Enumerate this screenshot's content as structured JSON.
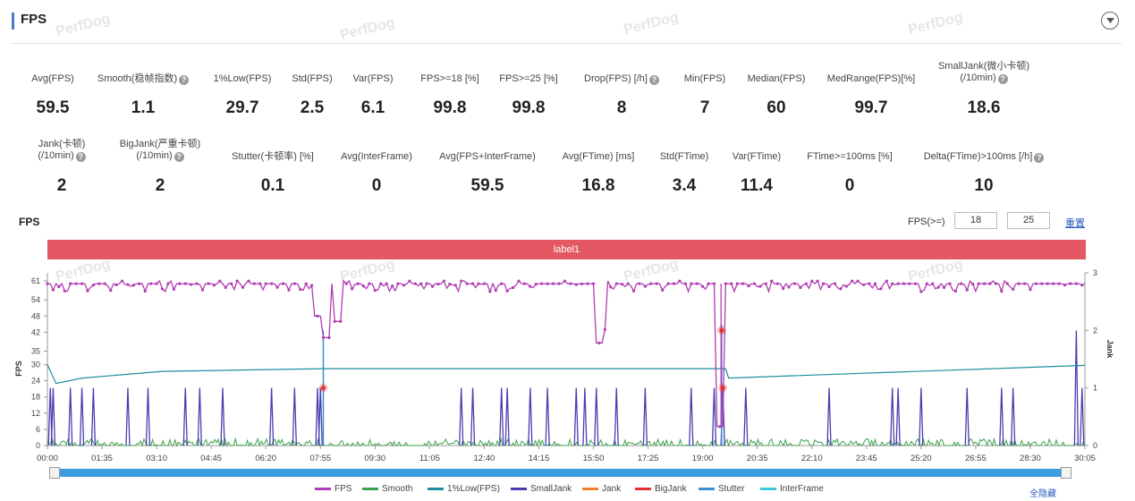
{
  "header": {
    "title": "FPS"
  },
  "watermark_text": "PerfDog",
  "metrics_row1": [
    {
      "label": "Avg(FPS)",
      "value": "59.5"
    },
    {
      "label": "Smooth(稳帧指数)",
      "value": "1.1",
      "help": true
    },
    {
      "label": "1%Low(FPS)",
      "value": "29.7"
    },
    {
      "label": "Std(FPS)",
      "value": "2.5"
    },
    {
      "label": "Var(FPS)",
      "value": "6.1"
    },
    {
      "label": "FPS>=18 [%]",
      "value": "99.8"
    },
    {
      "label": "FPS>=25 [%]",
      "value": "99.8"
    },
    {
      "label": "Drop(FPS) [/h]",
      "value": "8",
      "help": true
    },
    {
      "label": "Min(FPS)",
      "value": "7"
    },
    {
      "label": "Median(FPS)",
      "value": "60"
    },
    {
      "label": "MedRange(FPS)[%]",
      "value": "99.7"
    },
    {
      "label": "SmallJank(微小卡顿)",
      "label2": "(/10min)",
      "value": "18.6",
      "help": true
    }
  ],
  "metrics_row2": [
    {
      "label": "Jank(卡顿)",
      "label2": "(/10min)",
      "value": "2",
      "help": true
    },
    {
      "label": "BigJank(严重卡顿)",
      "label2": "(/10min)",
      "value": "2",
      "help": true
    },
    {
      "label": "Stutter(卡顿率) [%]",
      "value": "0.1"
    },
    {
      "label": "Avg(InterFrame)",
      "value": "0"
    },
    {
      "label": "Avg(FPS+InterFrame)",
      "value": "59.5"
    },
    {
      "label": "Avg(FTime) [ms]",
      "value": "16.8"
    },
    {
      "label": "Std(FTime)",
      "value": "3.4"
    },
    {
      "label": "Var(FTime)",
      "value": "11.4"
    },
    {
      "label": "FTime>=100ms [%]",
      "value": "0"
    },
    {
      "label": "Delta(FTime)>100ms [/h]",
      "value": "10",
      "help": true
    }
  ],
  "chart_panel": {
    "title": "FPS",
    "threshold_label": "FPS(>=)",
    "threshold_1": "18",
    "threshold_2": "25",
    "reset_label": "重置",
    "band_label": "label1",
    "hide_all_label": "全隐藏"
  },
  "colors": {
    "fps": "#b23cb4",
    "smooth": "#3aa24a",
    "low1": "#1e8e9e",
    "smalljank": "#4a3db0",
    "jank": "#f08030",
    "bigjank": "#e03030",
    "stutter": "#3d8fd0",
    "interframe": "#3cc8d8",
    "band": "#e45863"
  },
  "chart_data": {
    "type": "line",
    "title": "",
    "ylabel": "FPS",
    "y2label": "Jank",
    "ylim": [
      0,
      64
    ],
    "y2lim": [
      0,
      3
    ],
    "yticks": [
      0,
      6,
      12,
      18,
      24,
      30,
      35,
      42,
      48,
      54,
      61
    ],
    "y2ticks": [
      0,
      1,
      2,
      3
    ],
    "xlim_seconds": [
      0,
      1805
    ],
    "xticks": [
      "00:00",
      "01:35",
      "03:10",
      "04:45",
      "06:20",
      "07:55",
      "09:30",
      "11:05",
      "12:40",
      "14:15",
      "15:50",
      "17:25",
      "19:00",
      "20:35",
      "22:10",
      "23:45",
      "25:20",
      "26:55",
      "28:30",
      "30:05"
    ],
    "legend": [
      "FPS",
      "Smooth",
      "1%Low(FPS)",
      "SmallJank",
      "Jank",
      "BigJank",
      "Stutter",
      "InterFrame"
    ],
    "fps_baseline": 60,
    "fps_dips": [
      {
        "t": 470,
        "min": 48
      },
      {
        "t": 485,
        "min": 40
      },
      {
        "t": 505,
        "min": 46
      },
      {
        "t": 960,
        "min": 38
      },
      {
        "t": 965,
        "min": 43
      },
      {
        "t": 1170,
        "min": 7
      }
    ],
    "low1_series": [
      [
        0,
        30
      ],
      [
        15,
        23
      ],
      [
        60,
        25
      ],
      [
        200,
        27.5
      ],
      [
        480,
        28.5
      ],
      [
        1180,
        28.5
      ],
      [
        1185,
        25
      ],
      [
        1805,
        29.7
      ]
    ],
    "smalljank_times": [
      5,
      10,
      40,
      60,
      80,
      140,
      175,
      240,
      265,
      305,
      390,
      430,
      470,
      475,
      720,
      740,
      790,
      800,
      840,
      870,
      920,
      935,
      955,
      990,
      1040,
      1120,
      1160,
      1175,
      1215,
      1360,
      1470,
      1480,
      1520,
      1600,
      1660,
      1680,
      1790,
      1800
    ],
    "smalljank_values": [
      1,
      1,
      1,
      1,
      1,
      1,
      1,
      1,
      1,
      1,
      1,
      1,
      1,
      1,
      1,
      1,
      1,
      1,
      1,
      1,
      1,
      1,
      1,
      1,
      1,
      1,
      1,
      1,
      1,
      1,
      1,
      1,
      1,
      1,
      1,
      1,
      2,
      1
    ],
    "bigjank_points": [
      [
        480,
        1.0
      ],
      [
        1173,
        2.0
      ],
      [
        1175,
        1.0
      ]
    ],
    "jank_spikes": [
      [
        480,
        2.0
      ],
      [
        1173,
        2.1
      ]
    ]
  }
}
